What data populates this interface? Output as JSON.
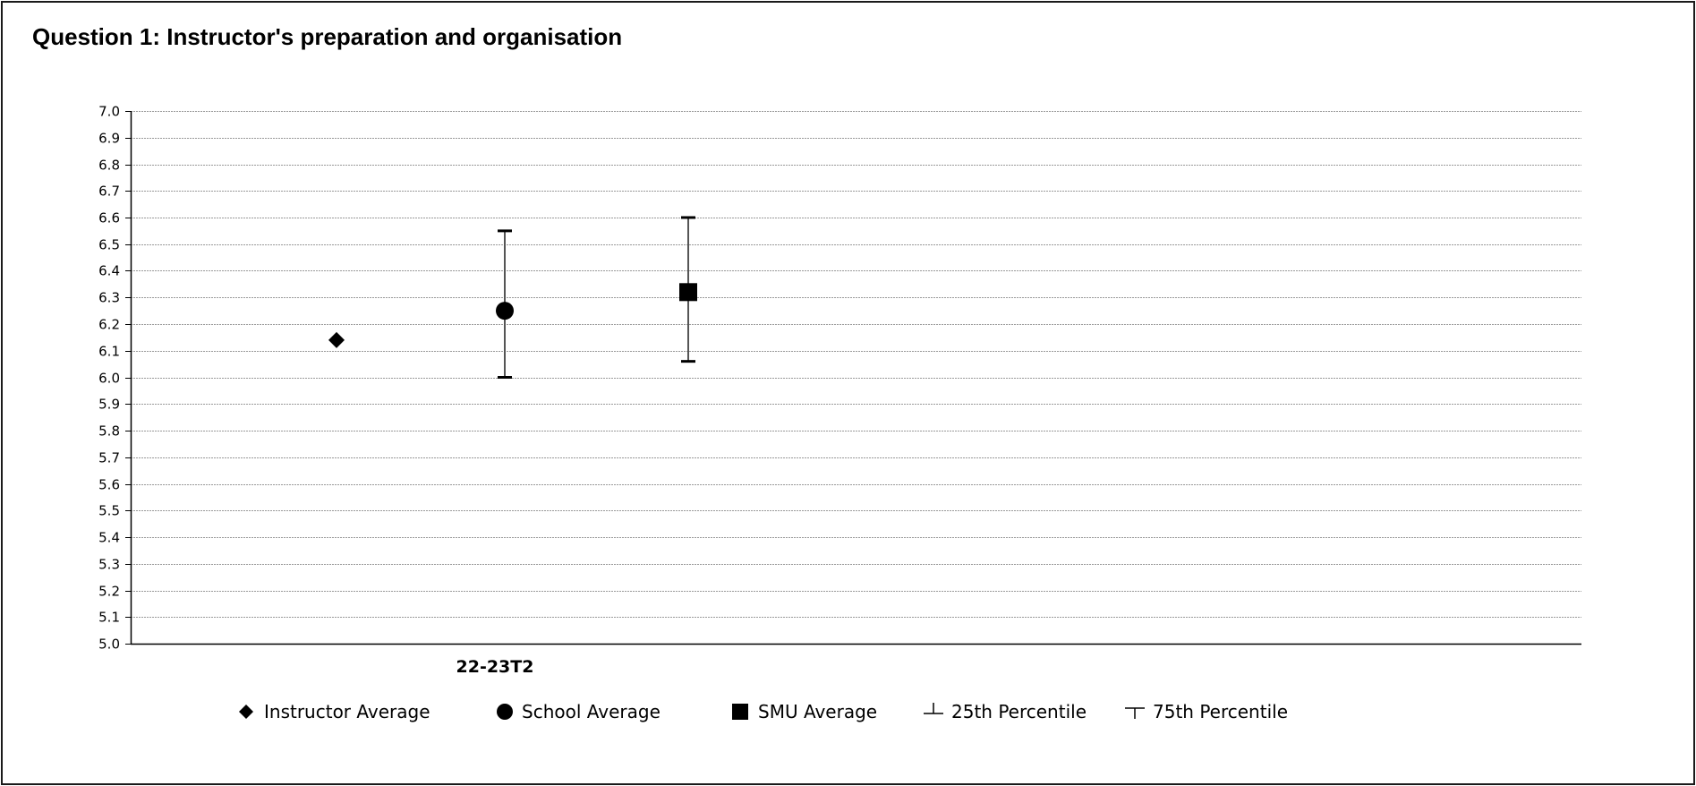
{
  "title": "Question 1: Instructor's preparation and organisation",
  "chart_data": {
    "type": "scatter",
    "title": "Question 1: Instructor's preparation and organisation",
    "xlabel": "",
    "ylabel": "",
    "ylim": [
      5.0,
      7.0
    ],
    "ytick_step": 0.1,
    "grid": true,
    "categories": [
      "22-23T2"
    ],
    "series": [
      {
        "name": "Instructor Average",
        "marker": "diamond",
        "values": [
          6.14
        ]
      },
      {
        "name": "School Average",
        "marker": "circle",
        "values": [
          6.25
        ],
        "p25": [
          6.0
        ],
        "p75": [
          6.55
        ]
      },
      {
        "name": "SMU Average",
        "marker": "square",
        "values": [
          6.32
        ],
        "p25": [
          6.06
        ],
        "p75": [
          6.6
        ]
      }
    ],
    "legend": {
      "position": "bottom",
      "entries": [
        "Instructor Average",
        "School Average",
        "SMU Average",
        "25th Percentile",
        "75th Percentile"
      ]
    }
  }
}
